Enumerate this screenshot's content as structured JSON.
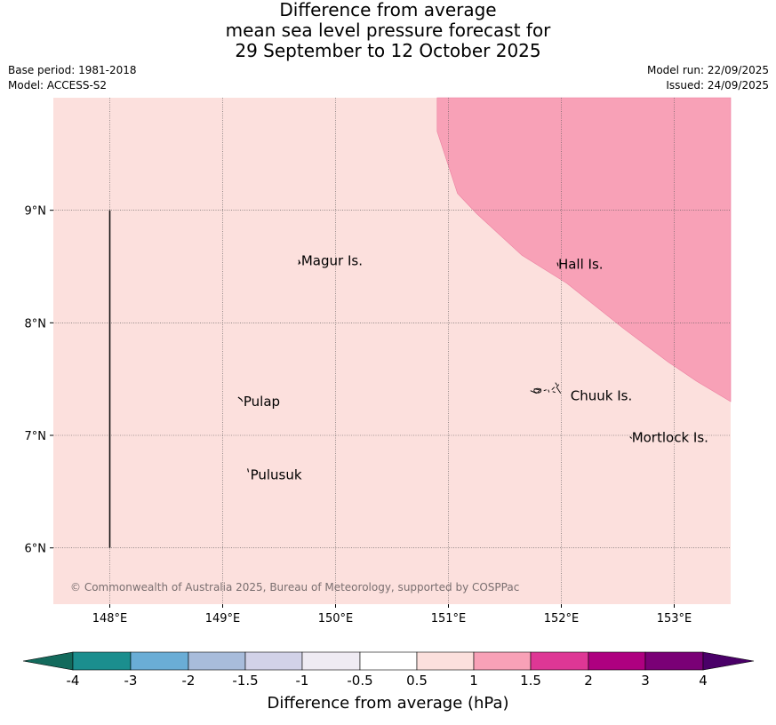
{
  "title": {
    "line1": "Difference from average",
    "line2": "mean sea level pressure forecast for",
    "line3": "29 September to 12 October 2025"
  },
  "meta": {
    "base_period": "Base period: 1981-2018",
    "model": "Model: ACCESS-S2",
    "model_run": "Model run: 22/09/2025",
    "issued": "Issued: 24/09/2025"
  },
  "map": {
    "lon_range": [
      147.5,
      153.5
    ],
    "lat_range": [
      5.5,
      10.0
    ],
    "lon_ticks": [
      148,
      149,
      150,
      151,
      152,
      153
    ],
    "lon_labels": [
      "148°E",
      "149°E",
      "150°E",
      "151°E",
      "152°E",
      "153°E"
    ],
    "lat_ticks": [
      6,
      7,
      8,
      9
    ],
    "lat_labels": [
      "6°N",
      "7°N",
      "8°N",
      "9°N"
    ],
    "background_anomaly_class": "0.5 to 1",
    "background_color": "#fce0dd",
    "high_anomaly_class": "1 to 1.5",
    "high_anomaly_color": "#f8a1b7",
    "copyright": "© Commonwealth of Australia 2025, Bureau of Meteorology, supported by COSPPac",
    "islands": [
      {
        "name": "Magur Is.",
        "lon": 149.68,
        "lat": 8.55
      },
      {
        "name": "Hall Is.",
        "lon": 151.98,
        "lat": 8.52
      },
      {
        "name": "Pulap",
        "lon": 149.2,
        "lat": 7.3
      },
      {
        "name": "Chuuk Is.",
        "lon": 151.75,
        "lat": 7.35
      },
      {
        "name": "Pulusuk",
        "lon": 149.3,
        "lat": 6.65
      },
      {
        "name": "Mortlock Is.",
        "lon": 152.6,
        "lat": 6.98
      }
    ]
  },
  "colorbar": {
    "title": "Difference from average (hPa)",
    "labels": [
      "-4",
      "-3",
      "-2",
      "-1.5",
      "-1",
      "-0.5",
      "0.5",
      "1",
      "1.5",
      "2",
      "3",
      "4"
    ],
    "colors": [
      "#1b8e8e",
      "#6aadd6",
      "#a8bcdb",
      "#d2d2e8",
      "#efebf3",
      "#ffffff",
      "#fce0dd",
      "#f8a1b7",
      "#de3795",
      "#ae0080",
      "#7a0076"
    ],
    "under_color": "#136a5c",
    "over_color": "#4a0068"
  }
}
